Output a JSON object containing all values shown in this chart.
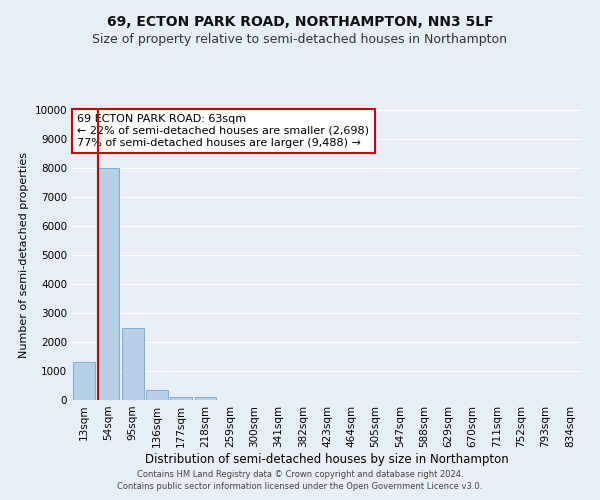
{
  "title": "69, ECTON PARK ROAD, NORTHAMPTON, NN3 5LF",
  "subtitle": "Size of property relative to semi-detached houses in Northampton",
  "xlabel": "Distribution of semi-detached houses by size in Northampton",
  "ylabel": "Number of semi-detached properties",
  "footnote1": "Contains HM Land Registry data © Crown copyright and database right 2024.",
  "footnote2": "Contains public sector information licensed under the Open Government Licence v3.0.",
  "categories": [
    "13sqm",
    "54sqm",
    "95sqm",
    "136sqm",
    "177sqm",
    "218sqm",
    "259sqm",
    "300sqm",
    "341sqm",
    "382sqm",
    "423sqm",
    "464sqm",
    "505sqm",
    "547sqm",
    "588sqm",
    "629sqm",
    "670sqm",
    "711sqm",
    "752sqm",
    "793sqm",
    "834sqm"
  ],
  "values": [
    1300,
    8000,
    2500,
    350,
    120,
    120,
    0,
    0,
    0,
    0,
    0,
    0,
    0,
    0,
    0,
    0,
    0,
    0,
    0,
    0,
    0
  ],
  "bar_color": "#b8cfe8",
  "bar_edge_color": "#7bafd4",
  "vline_color": "#cc0000",
  "vline_x_index": 1,
  "ylim": [
    0,
    10000
  ],
  "yticks": [
    0,
    1000,
    2000,
    3000,
    4000,
    5000,
    6000,
    7000,
    8000,
    9000,
    10000
  ],
  "annotation_line1": "69 ECTON PARK ROAD: 63sqm",
  "annotation_line2": "← 22% of semi-detached houses are smaller (2,698)",
  "annotation_line3": "77% of semi-detached houses are larger (9,488) →",
  "annotation_box_color": "#ffffff",
  "annotation_box_edge_color": "#cc0000",
  "bg_color": "#e8eef5",
  "grid_color": "#ffffff",
  "title_fontsize": 10,
  "subtitle_fontsize": 9,
  "ylabel_fontsize": 8,
  "xlabel_fontsize": 8.5,
  "annotation_fontsize": 8,
  "tick_fontsize": 7.5,
  "footnote_fontsize": 6
}
